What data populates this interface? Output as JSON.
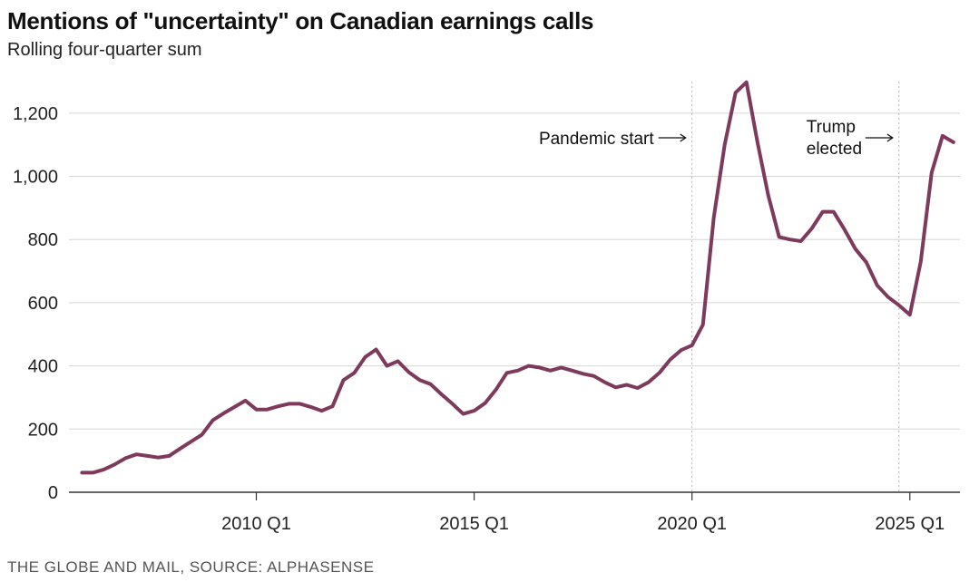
{
  "chart_data": {
    "type": "line",
    "title": "Mentions of \"uncertainty\" on Canadian earnings calls",
    "subtitle": "Rolling four-quarter sum",
    "source": "THE GLOBE AND MAIL, SOURCE: ALPHASENSE",
    "xlabel": "",
    "ylabel": "",
    "ylim": [
      0,
      1300
    ],
    "yticks": [
      0,
      200,
      400,
      600,
      800,
      1000,
      1200
    ],
    "ytick_labels": [
      "0",
      "200",
      "400",
      "600",
      "800",
      "1,000",
      "1,200"
    ],
    "xticks": [
      {
        "t": 2010.0,
        "label": "2010 Q1"
      },
      {
        "t": 2015.0,
        "label": "2015 Q1"
      },
      {
        "t": 2020.0,
        "label": "2020 Q1"
      },
      {
        "t": 2025.0,
        "label": "2025 Q1"
      }
    ],
    "grid": true,
    "color": "#7d3a5c",
    "annotations": [
      {
        "t": 2020.0,
        "lines": [
          "Pandemic start"
        ]
      },
      {
        "t": 2024.75,
        "lines": [
          "Trump",
          "elected"
        ]
      }
    ],
    "series": [
      {
        "name": "Mentions of \"uncertainty\"",
        "x": [
          2006.0,
          2006.25,
          2006.5,
          2006.75,
          2007.0,
          2007.25,
          2007.5,
          2007.75,
          2008.0,
          2008.25,
          2008.5,
          2008.75,
          2009.0,
          2009.25,
          2009.5,
          2009.75,
          2010.0,
          2010.25,
          2010.5,
          2010.75,
          2011.0,
          2011.25,
          2011.5,
          2011.75,
          2012.0,
          2012.25,
          2012.5,
          2012.75,
          2013.0,
          2013.25,
          2013.5,
          2013.75,
          2014.0,
          2014.25,
          2014.5,
          2014.75,
          2015.0,
          2015.25,
          2015.5,
          2015.75,
          2016.0,
          2016.25,
          2016.5,
          2016.75,
          2017.0,
          2017.25,
          2017.5,
          2017.75,
          2018.0,
          2018.25,
          2018.5,
          2018.75,
          2019.0,
          2019.25,
          2019.5,
          2019.75,
          2020.0,
          2020.25,
          2020.5,
          2020.75,
          2021.0,
          2021.25,
          2021.5,
          2021.75,
          2022.0,
          2022.25,
          2022.5,
          2022.75,
          2023.0,
          2023.25,
          2023.5,
          2023.75,
          2024.0,
          2024.25,
          2024.5,
          2024.75,
          2025.0,
          2025.25,
          2025.5,
          2025.75,
          2026.0
        ],
        "values": [
          62,
          62,
          72,
          88,
          108,
          120,
          115,
          110,
          115,
          138,
          160,
          182,
          228,
          250,
          270,
          290,
          262,
          262,
          272,
          280,
          280,
          270,
          258,
          272,
          355,
          378,
          428,
          452,
          400,
          415,
          380,
          355,
          342,
          310,
          280,
          248,
          258,
          282,
          325,
          378,
          385,
          400,
          395,
          385,
          395,
          385,
          375,
          368,
          348,
          332,
          340,
          330,
          348,
          378,
          420,
          450,
          465,
          530,
          870,
          1100,
          1265,
          1298,
          1110,
          940,
          808,
          800,
          795,
          835,
          888,
          888,
          832,
          770,
          728,
          655,
          618,
          592,
          562,
          730,
          1012,
          1128,
          1108
        ]
      }
    ]
  }
}
